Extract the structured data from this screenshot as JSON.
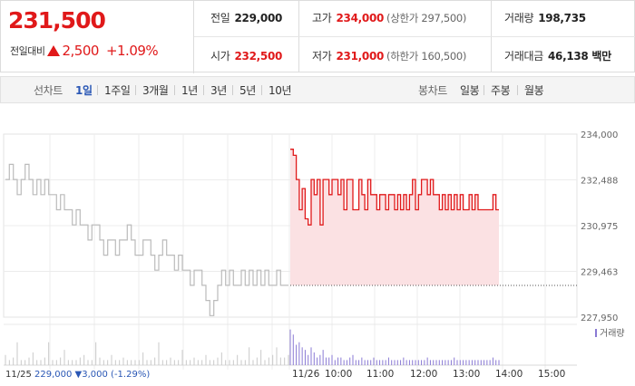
{
  "quote": {
    "price": "231,500",
    "change_label": "전일대비",
    "change": "2,500",
    "change_pct": "+1.09%",
    "up_color": "#e0191a"
  },
  "info": {
    "prev_close_label": "전일",
    "prev_close": "229,000",
    "high_label": "고가",
    "high": "234,000",
    "upper_limit": "(상한가 297,500)",
    "volume_label": "거래량",
    "volume": "198,735",
    "open_label": "시가",
    "open": "232,500",
    "low_label": "저가",
    "low": "231,000",
    "lower_limit": "(하한가 160,500)",
    "turnover_label": "거래대금",
    "turnover": "46,138 백만"
  },
  "tabs": {
    "line_label": "선차트",
    "line_items": [
      "1일",
      "1주일",
      "3개월",
      "1년",
      "3년",
      "5년",
      "10년"
    ],
    "line_active": 0,
    "candle_label": "봉차트",
    "candle_items": [
      "일봉",
      "주봉",
      "월봉"
    ]
  },
  "chart_data": {
    "type": "line",
    "y_ticks": [
      "234,000",
      "232,488",
      "230,975",
      "229,463",
      "227,950"
    ],
    "ylim": [
      227950,
      234000
    ],
    "x_ticks": [
      "11/26",
      "10:00",
      "11:00",
      "12:00",
      "13:00",
      "14:00",
      "15:00"
    ],
    "volume_legend": "거래량",
    "prev_day_label": "11/25",
    "prev_day_close": "229,000",
    "prev_day_change": "▼3,000",
    "prev_day_pct": "(-1.29%)",
    "prev_day_color": "#2a57b5",
    "series": [
      {
        "session": "11/25",
        "color": "#bbbbbb",
        "values": [
          232500,
          233000,
          232500,
          232000,
          232500,
          233000,
          232500,
          232000,
          232500,
          232000,
          232500,
          232000,
          232000,
          231500,
          232000,
          231500,
          231500,
          231000,
          231500,
          231000,
          231000,
          230500,
          231000,
          231000,
          230500,
          230000,
          230500,
          230500,
          230000,
          230500,
          230500,
          231000,
          230500,
          230000,
          230000,
          230500,
          230500,
          230000,
          229500,
          230000,
          230500,
          230000,
          230000,
          229500,
          230000,
          229500,
          229500,
          229000,
          229500,
          229500,
          229000,
          228500,
          228000,
          228500,
          229000,
          229500,
          229000,
          229500,
          229000,
          229000,
          229500,
          229000,
          229500,
          229000,
          229500,
          229000,
          229500,
          229000,
          229000,
          229500,
          229000,
          229000,
          229000
        ]
      },
      {
        "session": "11/26",
        "color": "#e0191a",
        "fill": "#fbe1e3",
        "values": [
          233500,
          233300,
          232500,
          231500,
          232200,
          231200,
          231000,
          232500,
          232000,
          232500,
          231000,
          232500,
          232500,
          232000,
          232500,
          232500,
          232000,
          232500,
          231500,
          232500,
          232500,
          231500,
          231500,
          232500,
          232000,
          231500,
          232500,
          232000,
          232000,
          231500,
          232000,
          232000,
          231500,
          232000,
          232000,
          231500,
          232000,
          231500,
          232000,
          231500,
          232000,
          232500,
          231500,
          232000,
          232500,
          232500,
          232000,
          232500,
          232000,
          232000,
          231500,
          232000,
          231500,
          232000,
          231500,
          232000,
          231500,
          232000,
          231500,
          231500,
          232000,
          231500,
          232000,
          231500,
          231500,
          231500,
          231500,
          231500,
          232000,
          231500,
          231500
        ]
      }
    ],
    "volume": {
      "prev": [
        4,
        2,
        3,
        9,
        2,
        2,
        3,
        5,
        2,
        2,
        3,
        9,
        2,
        2,
        3,
        6,
        2,
        2,
        2,
        3,
        4,
        2,
        2,
        9,
        3,
        2,
        2,
        4,
        2,
        2,
        3,
        2,
        2,
        2,
        2,
        5,
        2,
        2,
        3,
        9,
        2,
        2,
        3,
        2,
        2,
        6,
        2,
        2,
        3,
        2,
        2,
        4,
        2,
        2,
        3,
        5,
        2,
        2,
        2,
        4,
        2,
        2,
        7,
        2,
        3,
        6,
        2,
        3,
        4,
        7,
        3,
        3,
        4
      ],
      "curr": [
        14,
        12,
        8,
        9,
        7,
        6,
        4,
        7,
        5,
        3,
        4,
        6,
        3,
        3,
        4,
        2,
        3,
        3,
        2,
        2,
        3,
        4,
        2,
        2,
        3,
        2,
        2,
        2,
        3,
        2,
        2,
        2,
        2,
        3,
        2,
        2,
        2,
        2,
        3,
        2,
        2,
        2,
        2,
        2,
        2,
        2,
        3,
        2,
        2,
        2,
        2,
        2,
        2,
        2,
        2,
        3,
        2,
        2,
        2,
        2,
        2,
        2,
        2,
        2,
        2,
        2,
        2,
        2,
        3,
        2,
        2
      ]
    }
  }
}
